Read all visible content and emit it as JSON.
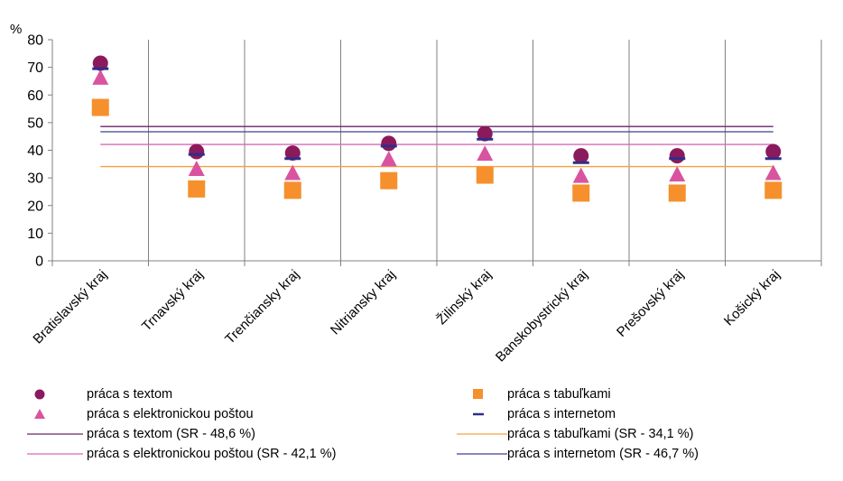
{
  "chart_data": {
    "type": "scatter",
    "y_unit_label": "%",
    "ylim": [
      0,
      80
    ],
    "yticks": [
      "0",
      "10",
      "20",
      "30",
      "40",
      "50",
      "60",
      "70",
      "80"
    ],
    "categories": [
      "Bratislavský kraj",
      "Trnavský kraj",
      "Trenčiansky kraj",
      "Nitriansky kraj",
      "Žilinský kraj",
      "Banskobystrický kraj",
      "Prešovský kraj",
      "Košický kraj"
    ],
    "series": [
      {
        "name": "práca s textom",
        "marker": "circle",
        "color": "#8B1A5C",
        "values": [
          71.5,
          39.5,
          39,
          42.5,
          46,
          38,
          38,
          39.5
        ]
      },
      {
        "name": "práca s tabuľkami",
        "marker": "square",
        "color": "#F5902D",
        "values": [
          55.5,
          26,
          25.5,
          29,
          31,
          24.5,
          24.5,
          25.5
        ]
      },
      {
        "name": "práca s elektronickou poštou",
        "marker": "triangle",
        "color": "#D9539F",
        "values": [
          66,
          33,
          31.5,
          36.5,
          38.5,
          30.5,
          31,
          31.5
        ]
      },
      {
        "name": "práca s internetom",
        "marker": "dash",
        "color": "#2E2E8A",
        "values": [
          69.5,
          38.5,
          37,
          41.5,
          44,
          35.5,
          37,
          37
        ]
      }
    ],
    "reference_lines": [
      {
        "name": "práca s textom (SR - 48,6 %)",
        "value": 48.6,
        "color": "#6B2468"
      },
      {
        "name": "práca s tabuľkami (SR - 34,1 %)",
        "value": 34.1,
        "color": "#F5A040"
      },
      {
        "name": "práca s elektronickou poštou (SR - 42,1 %)",
        "value": 42.1,
        "color": "#D968B5"
      },
      {
        "name": "práca s internetom (SR - 46,7 %)",
        "value": 46.7,
        "color": "#3D3D9C"
      }
    ],
    "grid": {
      "vertical": true,
      "horizontal": false
    },
    "legend_position": "bottom"
  }
}
